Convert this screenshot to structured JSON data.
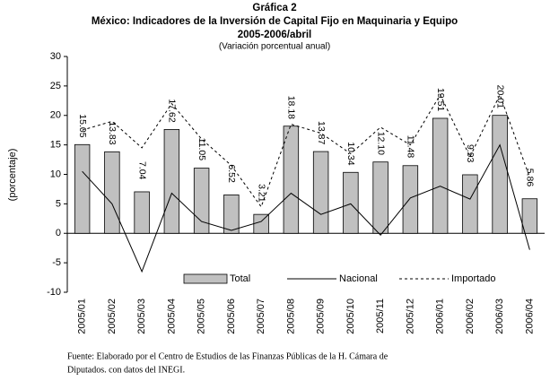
{
  "chart_data": {
    "type": "bar_line",
    "title": "Gráfica 2",
    "subtitle": "México: Indicadores de la Inversión de Capital Fijo en Maquinaria y Equipo",
    "period": "2005-2006/abril",
    "note": "(Variación porcentual anual)",
    "ylabel": "(porcentaje)",
    "categories": [
      "2005/01",
      "2005/02",
      "2005/03",
      "2005/04",
      "2005/05",
      "2005/06",
      "2005/07",
      "2005/08",
      "2005/09",
      "2005/10",
      "2005/11",
      "2005/12",
      "2006/01",
      "2006/02",
      "2006/03",
      "2006/04"
    ],
    "series": [
      {
        "name": "Total",
        "kind": "bar",
        "color": "#c0c0c0",
        "values": [
          15.05,
          13.83,
          7.04,
          17.62,
          11.05,
          6.52,
          3.21,
          18.18,
          13.87,
          10.34,
          12.1,
          11.48,
          19.51,
          9.93,
          20.01,
          5.86
        ],
        "value_labels": [
          "15.05",
          "13.83",
          "7.04",
          "17.62",
          "11.05",
          "6.52",
          "3.21",
          "18.18",
          "13.87",
          "10.34",
          "12.10",
          "11.48",
          "19.51",
          "9.93",
          "20.01",
          "5.86"
        ]
      },
      {
        "name": "Nacional",
        "kind": "line",
        "color": "#000000",
        "dash": false,
        "values": [
          10.5,
          5,
          -6.5,
          6.8,
          2,
          0.5,
          2,
          6.8,
          3.2,
          5,
          -0.3,
          6,
          8,
          5.8,
          15,
          -2.8
        ]
      },
      {
        "name": "Importado",
        "kind": "line",
        "color": "#000000",
        "dash": true,
        "values": [
          17.5,
          19,
          14.5,
          22,
          16,
          11.5,
          4.5,
          18.5,
          17,
          13.5,
          18,
          15,
          23.5,
          13,
          23.5,
          9.5
        ]
      }
    ],
    "ylim": [
      -10,
      30
    ],
    "yticks": [
      -10,
      -5,
      0,
      5,
      10,
      15,
      20,
      25,
      30
    ],
    "grid": false,
    "source": [
      "Fuente: Elaborado por el Centro de Estudios de las Finanzas Públicas de la H. Cámara de",
      "Diputados. con datos del INEGI."
    ]
  }
}
